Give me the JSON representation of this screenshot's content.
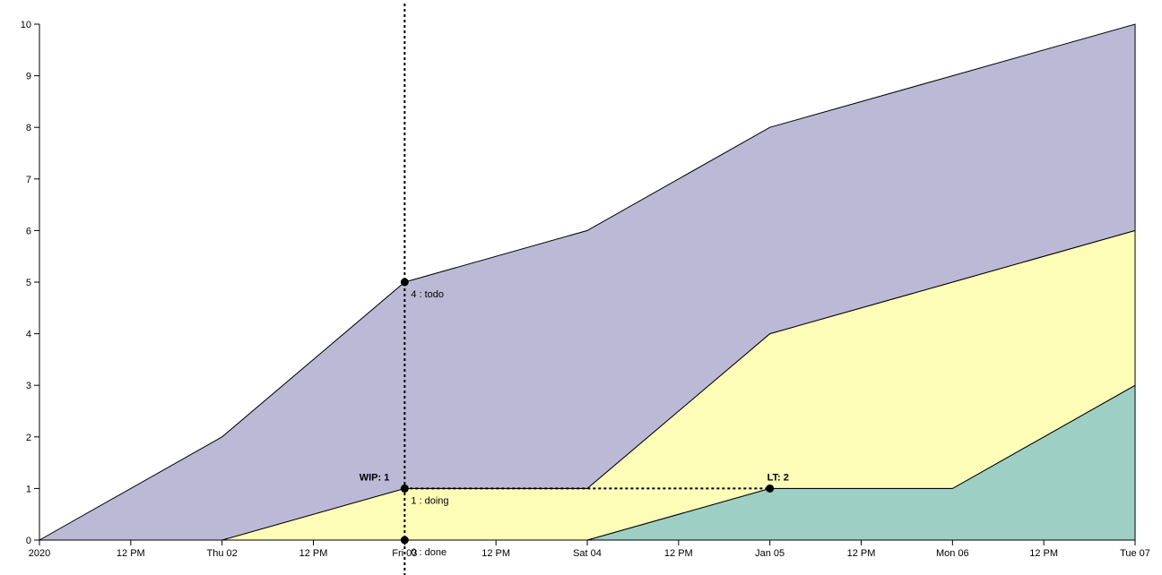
{
  "chart_data": {
    "type": "area",
    "stacked": true,
    "x": [
      "2020-01-01 00:00",
      "2020-01-02 00:00",
      "2020-01-03 00:00",
      "2020-01-04 00:00",
      "2020-01-05 00:00",
      "2020-01-06 00:00",
      "2020-01-07 00:00"
    ],
    "series": [
      {
        "name": "done",
        "values": [
          0,
          0,
          0,
          0,
          1,
          1,
          3
        ],
        "color": "#9ecfc4"
      },
      {
        "name": "doing",
        "values": [
          0,
          0,
          1,
          1,
          3,
          4,
          3
        ],
        "color": "#fdfdb8"
      },
      {
        "name": "todo",
        "values": [
          0,
          2,
          4,
          5,
          4,
          4,
          4
        ],
        "color": "#bcb9d7"
      }
    ],
    "ylim": [
      0,
      10
    ],
    "y_ticks": [
      "0",
      "1",
      "2",
      "3",
      "4",
      "5",
      "6",
      "7",
      "8",
      "9",
      "10"
    ],
    "x_ticks": [
      {
        "x": "2020-01-01 00:00",
        "label": "2020"
      },
      {
        "x": "2020-01-01 12:00",
        "label": "12 PM"
      },
      {
        "x": "2020-01-02 00:00",
        "label": "Thu 02"
      },
      {
        "x": "2020-01-02 12:00",
        "label": "12 PM"
      },
      {
        "x": "2020-01-03 00:00",
        "label": "Fri 03"
      },
      {
        "x": "2020-01-03 12:00",
        "label": "12 PM"
      },
      {
        "x": "2020-01-04 00:00",
        "label": "Sat 04"
      },
      {
        "x": "2020-01-04 12:00",
        "label": "12 PM"
      },
      {
        "x": "2020-01-05 00:00",
        "label": "Jan 05"
      },
      {
        "x": "2020-01-05 12:00",
        "label": "12 PM"
      },
      {
        "x": "2020-01-06 00:00",
        "label": "Mon 06"
      },
      {
        "x": "2020-01-06 12:00",
        "label": "12 PM"
      },
      {
        "x": "2020-01-07 00:00",
        "label": "Tue 07"
      }
    ],
    "grid": false,
    "crosshair": {
      "x": "2020-01-03 00:00",
      "markers": [
        {
          "y": 5,
          "label": "4 : todo"
        },
        {
          "y": 1,
          "label": "1 : doing"
        },
        {
          "y": 0,
          "label": "0 : done"
        }
      ]
    },
    "wip": {
      "label": "WIP: 1",
      "x": "2020-01-03 00:00",
      "y": 1
    },
    "lead_time": {
      "label": "LT: 2",
      "x_start": "2020-01-03 00:00",
      "x_end": "2020-01-05 00:00",
      "y": 1
    }
  }
}
